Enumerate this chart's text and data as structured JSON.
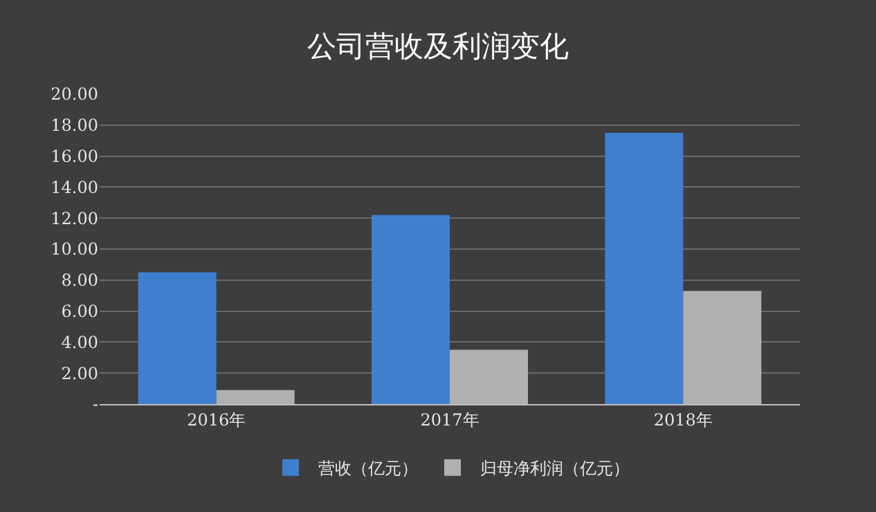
{
  "chart_data": {
    "type": "bar",
    "title": "公司营收及利润变化",
    "categories": [
      "2016年",
      "2017年",
      "2018年"
    ],
    "series": [
      {
        "name": "营收（亿元）",
        "color": "#3f7fd0",
        "values": [
          8.5,
          12.2,
          17.5
        ]
      },
      {
        "name": "归母净利润（亿元）",
        "color": "#b0b0b0",
        "values": [
          0.9,
          3.5,
          7.3
        ]
      }
    ],
    "ylim": [
      0,
      20
    ],
    "yticks": [
      {
        "value": 0,
        "label": "-"
      },
      {
        "value": 2,
        "label": "2.00"
      },
      {
        "value": 4,
        "label": "4.00"
      },
      {
        "value": 6,
        "label": "6.00"
      },
      {
        "value": 8,
        "label": "8.00"
      },
      {
        "value": 10,
        "label": "10.00"
      },
      {
        "value": 12,
        "label": "12.00"
      },
      {
        "value": 14,
        "label": "14.00"
      },
      {
        "value": 16,
        "label": "16.00"
      },
      {
        "value": 18,
        "label": "18.00"
      },
      {
        "value": 20,
        "label": "20.00"
      }
    ],
    "grid": "y",
    "legend": "bottom"
  }
}
